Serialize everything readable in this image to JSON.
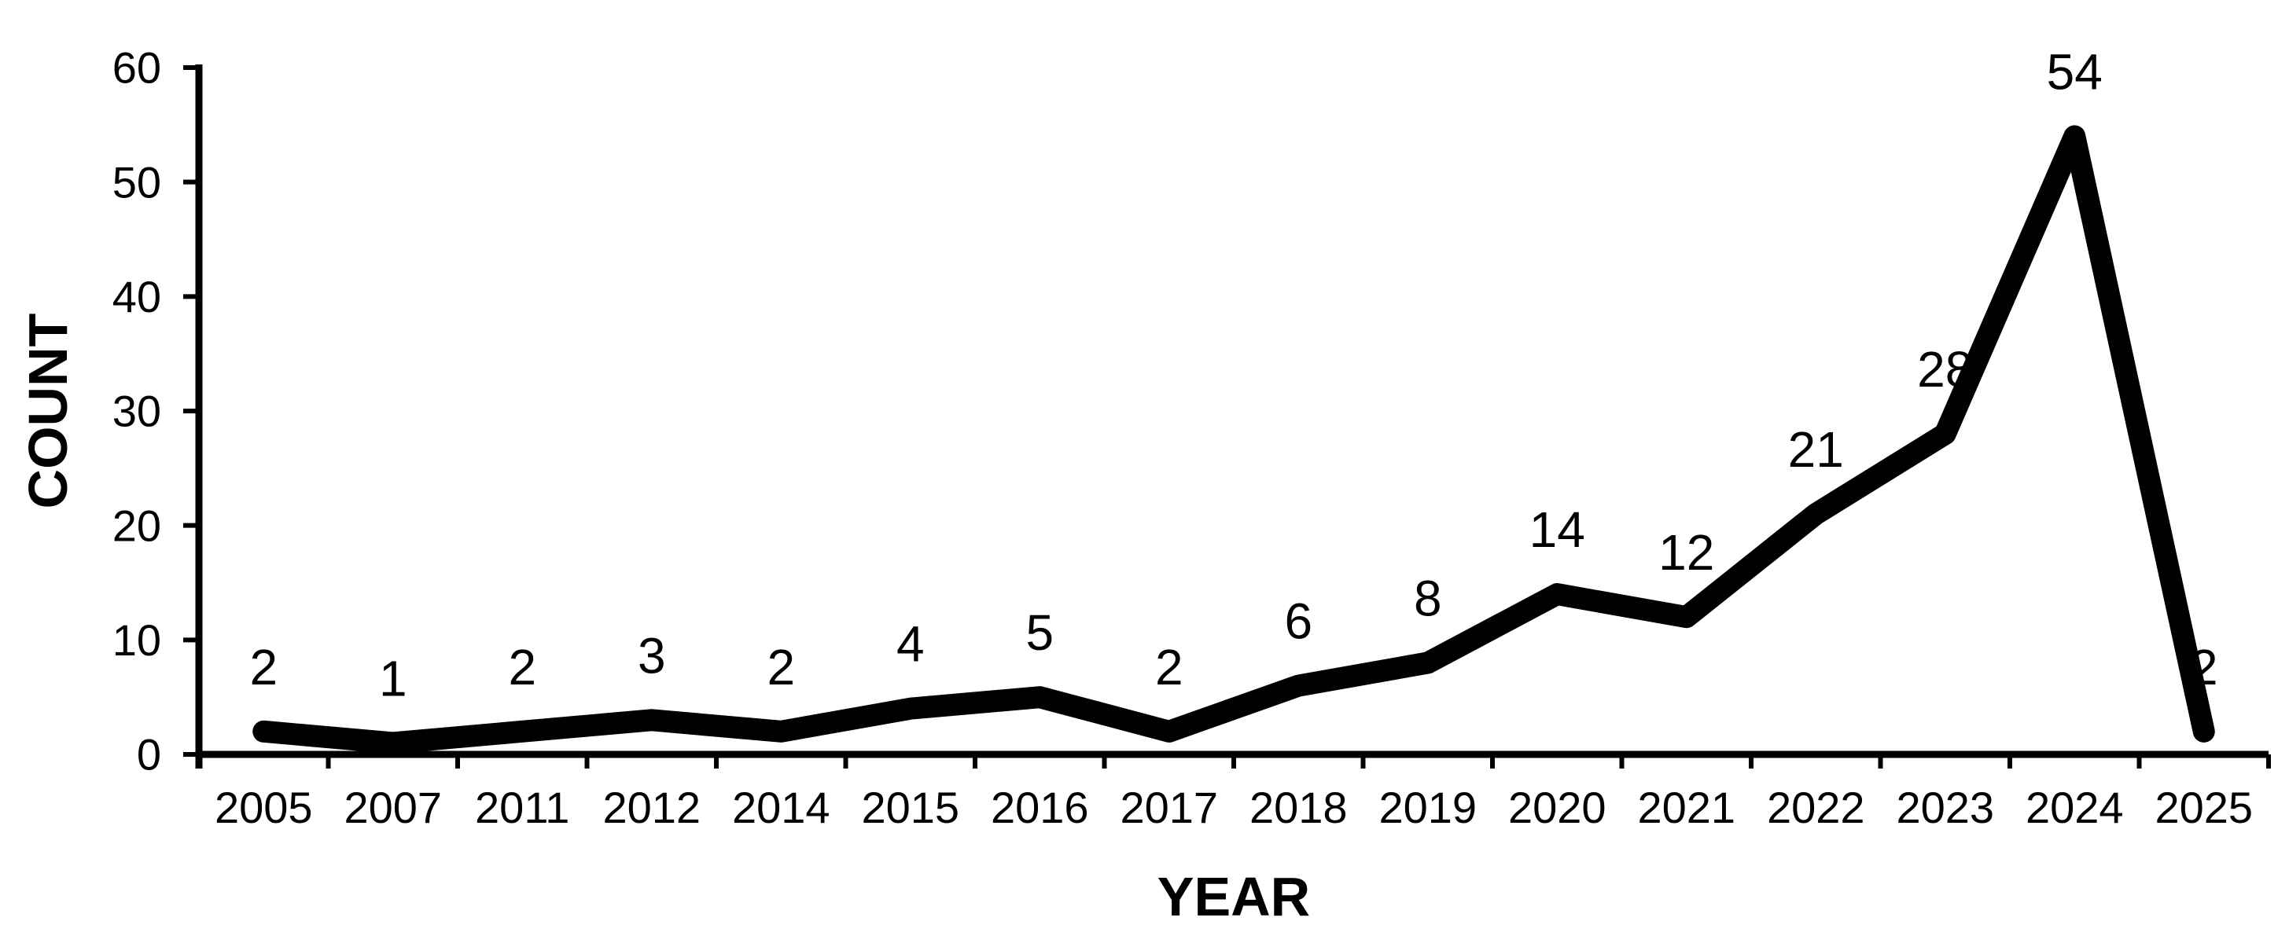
{
  "chart_data": {
    "type": "line",
    "title": "",
    "categories": [
      "2005",
      "2007",
      "2011",
      "2012",
      "2014",
      "2015",
      "2016",
      "2017",
      "2018",
      "2019",
      "2020",
      "2021",
      "2022",
      "2023",
      "2024",
      "2025"
    ],
    "values": [
      2,
      1,
      2,
      3,
      2,
      4,
      5,
      2,
      6,
      8,
      14,
      12,
      21,
      28,
      54,
      2
    ],
    "xlabel": "YEAR",
    "ylabel": "COUNT",
    "ylim": [
      0,
      60
    ],
    "yticks": [
      0,
      10,
      20,
      30,
      40,
      50,
      60
    ],
    "grid": false,
    "legend_position": "none",
    "data_labels_shown": true,
    "colors": {
      "line": "#000000",
      "text": "#000000",
      "axis": "#000000",
      "background": "#ffffff"
    }
  }
}
